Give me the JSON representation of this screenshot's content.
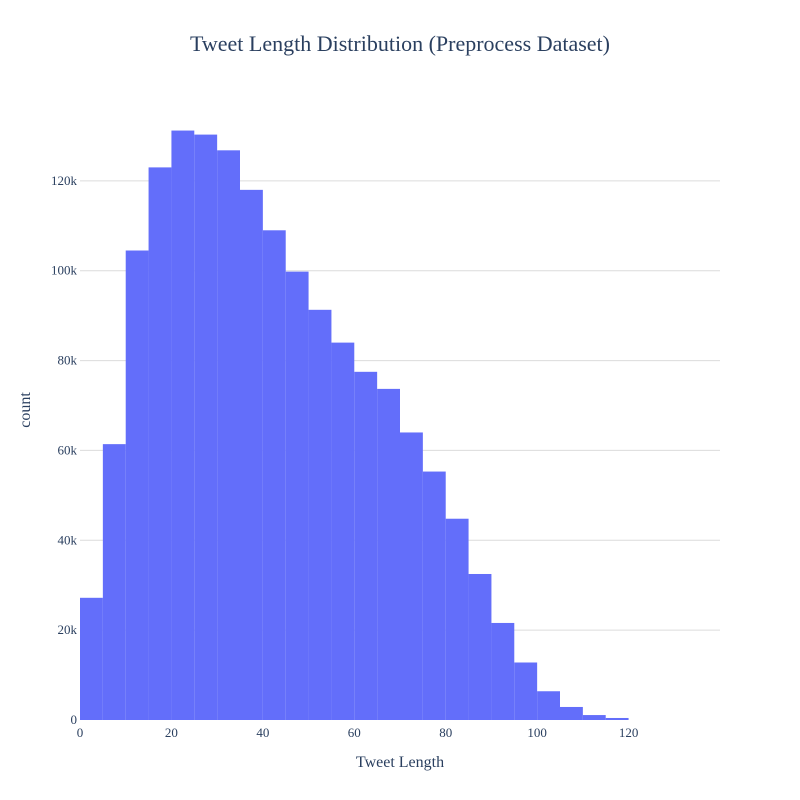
{
  "chart_data": {
    "type": "bar",
    "histogram": true,
    "title": "Tweet Length Distribution (Preprocess Dataset)",
    "xlabel": "Tweet Length",
    "ylabel": "count",
    "bin_width": 5,
    "bin_starts": [
      0,
      5,
      10,
      15,
      20,
      25,
      30,
      35,
      40,
      45,
      50,
      55,
      60,
      65,
      70,
      75,
      80,
      85,
      90,
      95,
      100,
      105,
      110,
      115
    ],
    "values": [
      27200,
      61400,
      104500,
      123000,
      131200,
      130300,
      126800,
      118000,
      109000,
      99800,
      91300,
      84000,
      77500,
      73700,
      64000,
      55300,
      44800,
      32500,
      21600,
      12800,
      6400,
      2900,
      1100,
      450
    ],
    "xlim": [
      0,
      140
    ],
    "ylim": [
      0,
      138000
    ],
    "x_ticks": [
      0,
      20,
      40,
      60,
      80,
      100,
      120
    ],
    "x_tick_labels": [
      "0",
      "20",
      "40",
      "60",
      "80",
      "100",
      "120"
    ],
    "y_ticks": [
      0,
      20000,
      40000,
      60000,
      80000,
      100000,
      120000
    ],
    "y_tick_labels": [
      "0",
      "20k",
      "40k",
      "60k",
      "80k",
      "100k",
      "120k"
    ],
    "grid": true,
    "bar_color": "#636efa"
  }
}
